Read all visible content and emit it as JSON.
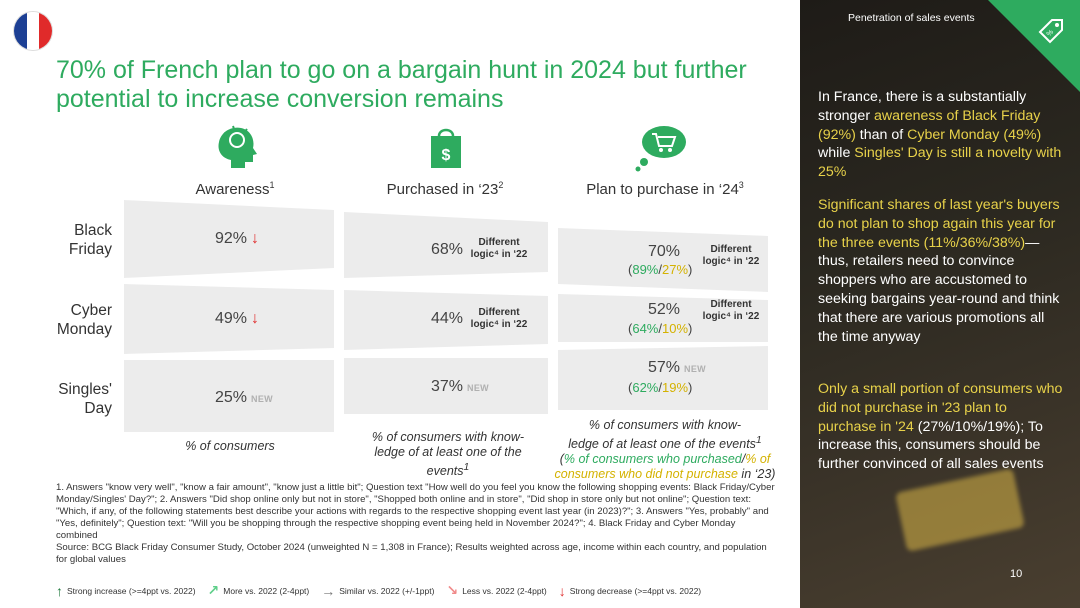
{
  "title": "70% of French plan to go on a bargain hunt in 2024 but further potential to increase conversion remains",
  "columns": [
    {
      "label": "Awareness",
      "sup": "1"
    },
    {
      "label": "Purchased in ‘23",
      "sup": "2"
    },
    {
      "label": "Plan to purchase in ‘24",
      "sup": "3"
    }
  ],
  "rows": [
    {
      "label1": "Black",
      "label2": "Friday"
    },
    {
      "label1": "Cyber",
      "label2": "Monday"
    },
    {
      "label1": "Singles'",
      "label2": "Day"
    }
  ],
  "awareness": [
    {
      "value": "92%",
      "trend": "↓"
    },
    {
      "value": "49%",
      "trend": "↓"
    },
    {
      "value": "25%",
      "badge": "NEW"
    }
  ],
  "purchased": [
    {
      "value": "68%",
      "diff1": "Different",
      "diff2": "logic⁴ in ‘22"
    },
    {
      "value": "44%",
      "diff1": "Different",
      "diff2": "logic⁴ in ‘22"
    },
    {
      "value": "37%",
      "badge": "NEW"
    }
  ],
  "plan": [
    {
      "value": "70%",
      "split_a": "89%",
      "split_b": "27%",
      "diff1": "Different",
      "diff2": "logic⁴ in ‘22"
    },
    {
      "value": "52%",
      "split_a": "64%",
      "split_b": "10%",
      "diff1": "Different",
      "diff2": "logic⁴ in ‘22"
    },
    {
      "value": "57%",
      "split_a": "62%",
      "split_b": "19%",
      "badge": "NEW"
    }
  ],
  "notes": {
    "awareness": "% of consumers",
    "purchased": "% of consumers with know-ledge of at least one of the events",
    "purchased_sup": "1",
    "plan_line1": "% of consumers with know-",
    "plan_line2": "ledge of at least one of the events",
    "plan_sup": "1",
    "plan_green": "% of consumers who purchased",
    "plan_sep": "/",
    "plan_yellow": "% of consumers who did not purchase",
    "plan_tail": " in ‘23)"
  },
  "footnote": "1. Answers \"know very well\", \"know a fair amount\", \"know just a little bit\"; Question text \"How well do you feel you know the following shopping events: Black Friday/Cyber Monday/Singles' Day?\"; 2. Answers \"Did shop online only but not in store\", \"Shopped both online and in store\", \"Did shop in store only but not online\"; Question text: \"Which, if any, of the following statements best describe your actions with regards to the respective shopping event last year (in 2023)?\"; 3. Answers \"Yes, probably\" and \"Yes, definitely\"; Question text: \"Will you be shopping through the respective shopping event being held in November 2024?\"; 4. Black Friday and Cyber Monday combined",
  "source": "Source: BCG Black Friday Consumer Study, October 2024 (unweighted N = 1,308 in France); Results weighted across age, income within each country, and population for global values",
  "legend": [
    {
      "arrow": "↑",
      "label": "Strong increase (>=4ppt vs. 2022)",
      "color": "#1f7a3d"
    },
    {
      "arrow": "↗",
      "label": "More vs. 2022 (2-4ppt)",
      "color": "#5fcf8a"
    },
    {
      "arrow": "→",
      "label": "Similar vs. 2022 (+/-1ppt)",
      "color": "#777777"
    },
    {
      "arrow": "↘",
      "label": "Less vs. 2022 (2-4ppt)",
      "color": "#f08a8a"
    },
    {
      "arrow": "↓",
      "label": "Strong decrease (>=4ppt vs. 2022)",
      "color": "#e03030"
    }
  ],
  "panel": {
    "header": "Penetration of sales events",
    "p1_a": "In France, there is a substantially stronger ",
    "p1_b": "awareness of Black Friday (92%)",
    "p1_c": " than of ",
    "p1_d": "Cyber Monday (49%)",
    "p1_e": " while ",
    "p1_f": "Singles' Day is still a novelty with 25%",
    "p2_a": "Significant shares of last year's buyers do not plan to shop again this year for the three events (11%/36%/38%)",
    "p2_b": "—thus, retailers need to convince shoppers who are accustomed to seeking bargains year-round and think that there are various promotions all the time anyway",
    "p3_a": "Only a small portion of consumers who did not purchase in '23 plan to purchase in '24",
    "p3_b": " (27%/10%/19%); To increase this, consumers should be further convinced of all sales events",
    "page": "10"
  },
  "colors": {
    "accent": "#2eab5f",
    "highlight": "#e8d24a",
    "decrease": "#e03030"
  }
}
